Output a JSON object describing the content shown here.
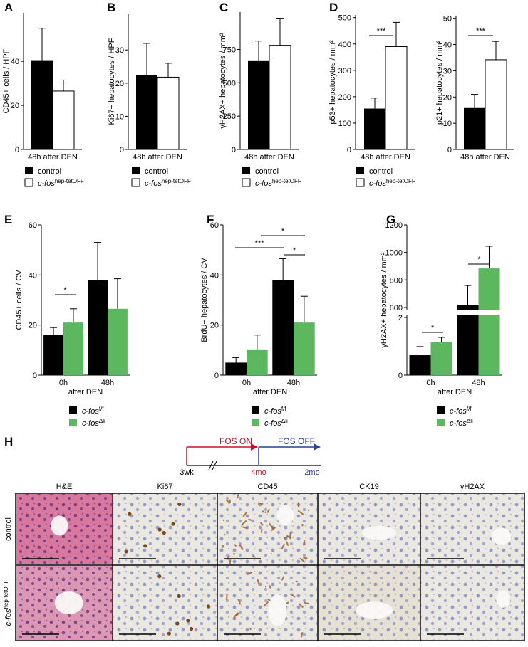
{
  "chart_data": [
    {
      "type": "bar",
      "panel": "A",
      "ylabel": "CD45+ cells / HPF",
      "categories": [
        "48h after DEN"
      ],
      "series": [
        {
          "name": "control",
          "color": "#000000",
          "values": [
            40.5
          ],
          "errors": [
            14.5
          ]
        },
        {
          "name": "c-fos",
          "name_sup": "hep-tetOFF",
          "color": "#ffffff",
          "values": [
            26.5
          ],
          "errors": [
            5
          ]
        }
      ],
      "ylim": [
        0,
        62
      ],
      "yticks": [
        0,
        20,
        40
      ],
      "legend": "below"
    },
    {
      "type": "bar",
      "panel": "B",
      "ylabel": "Ki67+ hepatocytes / HPF",
      "categories": [
        "48h after DEN"
      ],
      "series": [
        {
          "name": "control",
          "color": "#000000",
          "values": [
            22.5
          ],
          "errors": [
            9.5
          ]
        },
        {
          "name": "c-fos",
          "name_sup": "hep-tetOFF",
          "color": "#ffffff",
          "values": [
            21.8
          ],
          "errors": [
            4.2
          ]
        }
      ],
      "ylim": [
        0,
        41
      ],
      "yticks": [
        0,
        10,
        20,
        30
      ],
      "legend": "below"
    },
    {
      "type": "bar",
      "panel": "C",
      "ylabel": "γH2AX+ hepatocytes / mm²",
      "categories": [
        "48h after DEN"
      ],
      "series": [
        {
          "name": "control",
          "color": "#000000",
          "values": [
            668
          ],
          "errors": [
            145
          ]
        },
        {
          "name": "c-fos",
          "name_sup": "hep-tetOFF",
          "color": "#ffffff",
          "values": [
            781
          ],
          "errors": [
            203
          ]
        }
      ],
      "ylim": [
        0,
        1030
      ],
      "yticks": [
        0,
        250,
        500,
        750
      ],
      "legend": "below"
    },
    {
      "type": "bar",
      "panel": "D",
      "ylabel": "p53+ hepatocytes / mm²",
      "categories": [
        "48h after DEN"
      ],
      "series": [
        {
          "name": "control",
          "color": "#000000",
          "values": [
            155
          ],
          "errors": [
            40
          ]
        },
        {
          "name": "c-fos",
          "name_sup": "hep-tetOFF",
          "color": "#ffffff",
          "values": [
            390
          ],
          "errors": [
            92
          ]
        }
      ],
      "ylim": [
        0,
        510
      ],
      "yticks": [
        0,
        100,
        200,
        300,
        400,
        500
      ],
      "legend": "below",
      "annotations": [
        "***"
      ]
    },
    {
      "type": "bar",
      "ylabel": "p21+ hepatocytes / mm²",
      "categories": [
        "48h after DEN"
      ],
      "series": [
        {
          "color": "#000000",
          "values": [
            15.8
          ],
          "errors": [
            5.2
          ]
        },
        {
          "color": "#ffffff",
          "values": [
            34.2
          ],
          "errors": [
            7
          ]
        }
      ],
      "ylim": [
        0,
        51
      ],
      "yticks": [
        0,
        10,
        20,
        30,
        40,
        50
      ],
      "annotations": [
        "***"
      ]
    },
    {
      "type": "bar",
      "panel": "E",
      "ylabel": "CD45+ cells / CV",
      "xlabel": "after DEN",
      "categories": [
        "0h",
        "48h"
      ],
      "series": [
        {
          "name": "c-fos",
          "name_sup": "f/f",
          "color": "#000000",
          "values": [
            16,
            38
          ],
          "errors": [
            3,
            15
          ]
        },
        {
          "name": "c-fos",
          "name_sup": "Δli",
          "color": "#5db75e",
          "values": [
            21,
            26.5
          ],
          "errors": [
            5.5,
            12
          ]
        }
      ],
      "ylim": [
        0,
        60
      ],
      "yticks": [
        0,
        20,
        40,
        60
      ],
      "legend": "below",
      "annotations": [
        "*"
      ]
    },
    {
      "type": "bar",
      "panel": "F",
      "ylabel": "BrdU+ hepatocytes / CV",
      "xlabel": "after DEN",
      "categories": [
        "0h",
        "48h"
      ],
      "series": [
        {
          "name": "c-fos",
          "name_sup": "f/f",
          "color": "#000000",
          "values": [
            5,
            38
          ],
          "errors": [
            2,
            8.5
          ]
        },
        {
          "name": "c-fos",
          "name_sup": "Δli",
          "color": "#5db75e",
          "values": [
            10,
            21
          ],
          "errors": [
            6,
            10.5
          ]
        }
      ],
      "ylim": [
        0,
        60
      ],
      "yticks": [
        0,
        20,
        40,
        60
      ],
      "legend": "below",
      "annotations": [
        "*",
        "***",
        "*"
      ]
    },
    {
      "type": "bar",
      "panel": "G",
      "ylabel": "γH2AX+ hepatocytes / mm²",
      "xlabel": "after DEN",
      "categories": [
        "0h",
        "48h"
      ],
      "series": [
        {
          "name": "c-fos",
          "name_sup": "f/f",
          "color": "#000000",
          "values": [
            0.69,
            620
          ],
          "errors": [
            0.3,
            140
          ]
        },
        {
          "name": "c-fos",
          "name_sup": "Δli",
          "color": "#5db75e",
          "values": [
            1.14,
            884
          ],
          "errors": [
            0.17,
            161
          ]
        }
      ],
      "ylim": [
        0,
        1200
      ],
      "ybreak": [
        2,
        600
      ],
      "yticks": [
        0,
        2,
        600,
        800,
        1000,
        1200
      ],
      "legend": "below",
      "annotations": [
        "*",
        "*"
      ]
    }
  ],
  "panel_h": {
    "panel": "H",
    "timeline": {
      "on": "FOS ON",
      "off": "FOS OFF",
      "start": "3wk",
      "mid": "4mo",
      "end": "2mo"
    },
    "columns": [
      "H&E",
      "Ki67",
      "CD45",
      "CK19",
      "γH2AX"
    ],
    "rows": [
      {
        "name": "control"
      },
      {
        "name": "c-fos",
        "name_sup": "hep-tetOFF"
      }
    ]
  }
}
